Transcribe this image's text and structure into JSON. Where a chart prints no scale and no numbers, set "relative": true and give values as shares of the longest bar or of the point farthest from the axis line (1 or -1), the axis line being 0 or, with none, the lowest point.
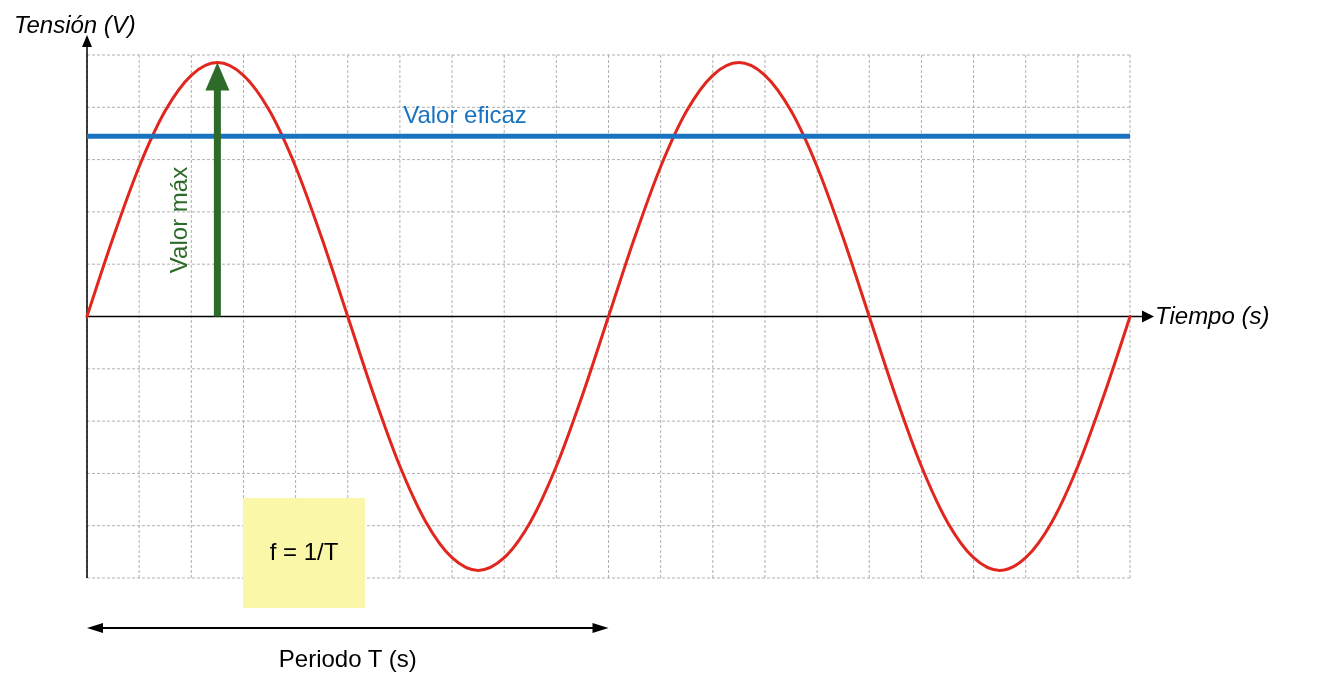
{
  "chart_data": {
    "type": "line",
    "xlabel": "Tiempo (s)",
    "ylabel": "Tensión (V)",
    "relative": true,
    "grid": true,
    "categories": [
      null,
      null,
      null,
      null,
      null,
      null,
      null,
      null,
      null,
      null,
      null,
      null,
      null,
      null,
      null,
      null,
      null,
      null,
      null,
      null,
      null,
      null,
      null,
      null,
      null,
      null,
      null,
      null,
      null,
      null,
      null,
      null,
      null,
      null,
      null,
      null,
      null,
      null,
      null,
      null,
      null
    ],
    "series": [
      {
        "color": "#e0261d",
        "values": [
          0,
          0.31,
          0.59,
          0.81,
          0.95,
          1,
          0.95,
          0.81,
          0.59,
          0.31,
          0,
          -0.31,
          -0.59,
          -0.81,
          -0.95,
          -1,
          -0.95,
          -0.81,
          -0.59,
          -0.31,
          0,
          0.31,
          0.59,
          0.81,
          0.95,
          1,
          0.95,
          0.81,
          0.59,
          0.31,
          0,
          -0.31,
          -0.59,
          -0.81,
          -0.95,
          -1,
          -0.95,
          -0.81,
          -0.59,
          -0.31,
          0
        ]
      }
    ],
    "ref_lines": [
      {
        "axis": "y",
        "value": 0.71,
        "label": "Valor eficaz",
        "color": "#1a73c0"
      }
    ],
    "annotations": [
      "Valor máx",
      "f = 1/T",
      "Periodo T (s)"
    ]
  }
}
